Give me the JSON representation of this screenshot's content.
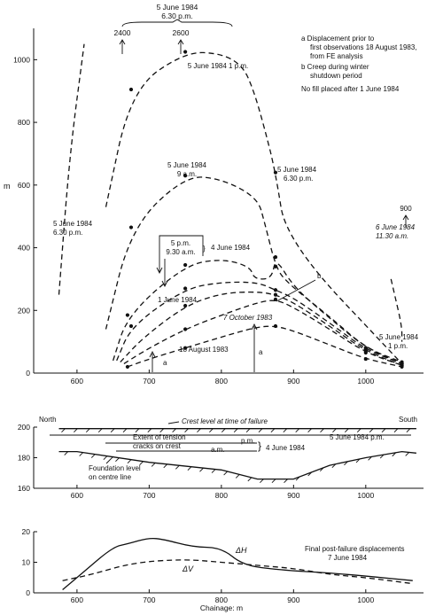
{
  "top": {
    "ylabel": "m",
    "xlim": [
      540,
      1080
    ],
    "ylim": [
      0,
      1100
    ],
    "xticks": [
      600,
      700,
      800,
      900,
      1000
    ],
    "yticks": [
      0,
      200,
      400,
      600,
      800,
      1000
    ],
    "notes": [
      "a Displacement prior to",
      "first observations 18 August 1983,",
      "from FE analysis",
      "b Creep during winter",
      "shutdown period",
      "No fill placed after 1 June 1984"
    ],
    "header": {
      "l1": "5 June 1984",
      "l2": "6.30 p.m.",
      "left": "2400",
      "right": "2600"
    },
    "labels": {
      "c_1pm": "5 June 1984 1 p.m.",
      "c_9am_1": "5 June 1984",
      "c_9am_2": "9 a.m.",
      "c_1ju": "1 June 1984",
      "c_7oct": "7 October 1983",
      "c_18aug": "18 August 1983",
      "c_4ju_a": "5 p.m.",
      "c_4ju_b": "9.30 a.m.",
      "c_4ju_c": "4 June 1984",
      "left_1": "5 June 1984",
      "left_2": "6.30 p.m.",
      "mid_1": "5 June 1984",
      "mid_2": "6.30 p.m.",
      "six_1": "6 June 1984",
      "six_2": "11.30 a.m.",
      "six_val": "900",
      "r1pm_1": "5 June 1984",
      "r1pm_2": "1 p.m.",
      "a": "a",
      "b": "b"
    }
  },
  "section": {
    "ylim": [
      160,
      200
    ],
    "yticks": [
      160,
      180,
      200
    ],
    "xticks": [
      600,
      700,
      800,
      900,
      1000
    ],
    "north": "North",
    "south": "South",
    "crest": "Crest level at time of failure",
    "extent_1": "Extent of tension",
    "extent_2": "cracks on crest",
    "pm": "p.m.",
    "am": "a.m.",
    "date": "4 June 1984",
    "date5": "5 June 1984 p.m.",
    "found_1": "Foundation level",
    "found_2": "on centre line"
  },
  "bottom": {
    "ylim": [
      0,
      20
    ],
    "yticks": [
      0,
      10,
      20
    ],
    "xticks": [
      600,
      700,
      800,
      900,
      1000
    ],
    "xlabel": "Chainage: m",
    "dh": "ΔH",
    "dv": "ΔV",
    "note_1": "Final post-failure displacements",
    "note_2": "7 June 1984"
  },
  "chart_data": [
    {
      "type": "line",
      "ylabel": "m",
      "xlim": [
        540,
        1080
      ],
      "ylim": [
        0,
        1100
      ],
      "series": [
        {
          "name": "18 August 1983",
          "x": [
            670,
            700,
            750,
            800,
            850,
            875,
            900,
            950,
            1000,
            1050
          ],
          "y": [
            20,
            45,
            80,
            115,
            148,
            150,
            135,
            90,
            45,
            20
          ]
        },
        {
          "name": "7 October 1983",
          "x": [
            665,
            700,
            750,
            800,
            850,
            875,
            900,
            950,
            1000,
            1050
          ],
          "y": [
            30,
            80,
            140,
            185,
            225,
            235,
            210,
            140,
            65,
            25
          ]
        },
        {
          "name": "1 June 1984",
          "x": [
            660,
            690,
            750,
            800,
            850,
            875,
            900,
            950,
            1000,
            1050
          ],
          "y": [
            35,
            110,
            215,
            255,
            260,
            250,
            225,
            150,
            70,
            25
          ]
        },
        {
          "name": "4 June 1984 9.30 a.m.",
          "x": [
            655,
            675,
            750,
            800,
            850,
            875,
            900,
            950,
            1000,
            1050
          ],
          "y": [
            40,
            150,
            270,
            290,
            290,
            265,
            240,
            160,
            75,
            30
          ]
        },
        {
          "name": "4 June 1984 5 p.m.",
          "x": [
            650,
            670,
            750,
            800,
            840,
            845,
            870,
            875,
            900,
            950,
            1000,
            1050
          ],
          "y": [
            40,
            185,
            345,
            365,
            340,
            300,
            300,
            370,
            275,
            175,
            80,
            35
          ]
        },
        {
          "name": "5 June 1984 9 a.m.",
          "x": [
            640,
            675,
            750,
            800,
            850,
            860,
            875,
            890,
            950,
            1000,
            1050
          ],
          "y": [
            140,
            465,
            630,
            620,
            560,
            480,
            340,
            290,
            180,
            80,
            30
          ]
        },
        {
          "name": "5 June 1984 1 p.m.",
          "x": [
            640,
            675,
            750,
            800,
            830,
            845,
            860,
            875,
            890,
            1050
          ],
          "y": [
            530,
            905,
            1025,
            1020,
            980,
            900,
            780,
            640,
            420,
            30
          ]
        },
        {
          "name": "5 June 1984 6.30 p.m.",
          "x": [
            575,
            590,
            610
          ],
          "y": [
            250,
            700,
            1050
          ]
        },
        {
          "name": "6 June 1984 11.30 a.m.",
          "x": [
            1035,
            1040,
            1050,
            1050
          ],
          "y": [
            300,
            250,
            150,
            100
          ]
        }
      ]
    },
    {
      "type": "line",
      "xlim": [
        540,
        1080
      ],
      "ylim": [
        160,
        200
      ],
      "series": [
        {
          "name": "Crest level at time of failure",
          "x": [
            575,
            1070
          ],
          "y": [
            199,
            199
          ]
        },
        {
          "name": "Foundation level on centre line",
          "x": [
            575,
            600,
            700,
            800,
            850,
            900,
            950,
            1000,
            1050,
            1070
          ],
          "y": [
            184,
            184,
            177,
            172,
            166,
            166,
            175,
            180,
            184,
            183
          ]
        }
      ]
    },
    {
      "type": "line",
      "xlabel": "Chainage: m",
      "xlim": [
        540,
        1080
      ],
      "ylim": [
        0,
        20
      ],
      "series": [
        {
          "name": "ΔH",
          "x": [
            580,
            610,
            650,
            670,
            700,
            720,
            760,
            800,
            830,
            880,
            950,
            1000,
            1065
          ],
          "y": [
            1,
            7,
            15,
            16,
            18,
            17.5,
            15,
            14.8,
            9,
            7.5,
            6.5,
            5.5,
            4
          ]
        },
        {
          "name": "ΔV",
          "x": [
            580,
            620,
            680,
            750,
            800,
            850,
            900,
            950,
            1000,
            1065
          ],
          "y": [
            4,
            6,
            10,
            11,
            10,
            9,
            8,
            6,
            5,
            3
          ]
        }
      ]
    }
  ]
}
